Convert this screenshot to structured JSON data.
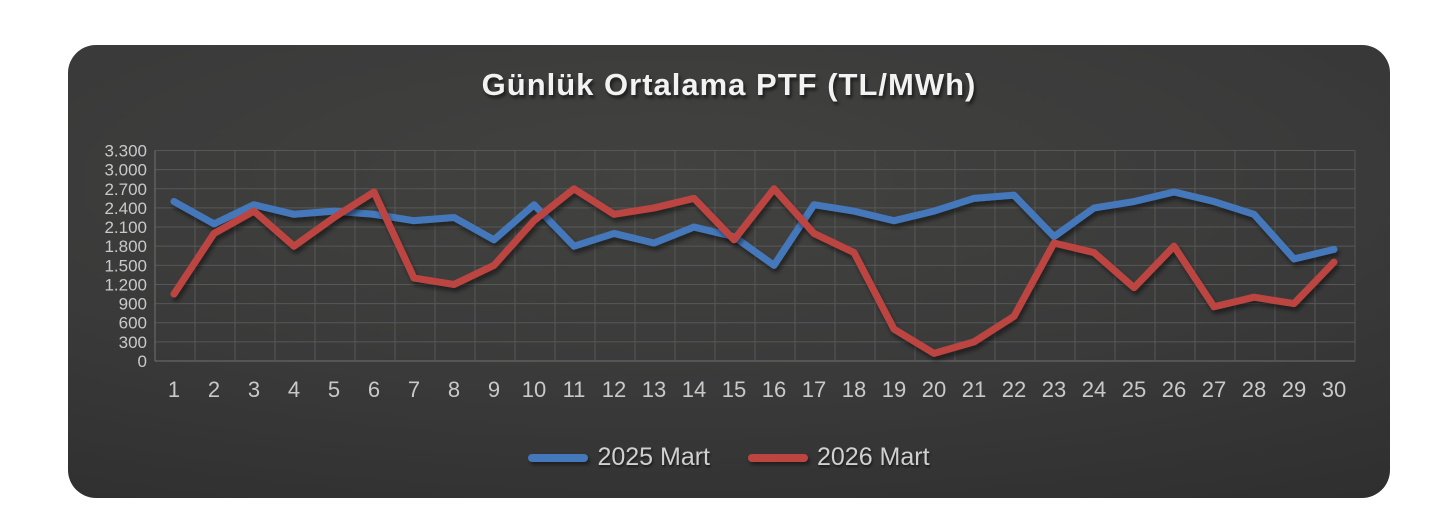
{
  "panel": {
    "background_inner": "#424240",
    "background_outer": "#232323"
  },
  "legend": {
    "item1_label": "2025 Mart",
    "item2_label": "2026 Mart"
  },
  "chart_data": {
    "type": "line",
    "title": "Günlük Ortalama PTF (TL/MWh)",
    "categories": [
      1,
      2,
      3,
      4,
      5,
      6,
      7,
      8,
      9,
      10,
      11,
      12,
      13,
      14,
      15,
      16,
      17,
      18,
      19,
      20,
      21,
      22,
      23,
      24,
      25,
      26,
      27,
      28,
      29,
      30
    ],
    "series": [
      {
        "name": "2025 Mart",
        "color": "#4478ba",
        "values": [
          2500,
          2150,
          2450,
          2300,
          2350,
          2300,
          2200,
          2250,
          1900,
          2450,
          1800,
          2000,
          1850,
          2100,
          1950,
          1500,
          2450,
          2350,
          2200,
          2350,
          2550,
          2600,
          1950,
          2400,
          2500,
          2650,
          2500,
          2300,
          1600,
          1750
        ]
      },
      {
        "name": "2026 Mart",
        "color": "#bc4542",
        "values": [
          1050,
          2000,
          2350,
          1800,
          2250,
          2650,
          1300,
          1200,
          1500,
          2200,
          2700,
          2300,
          2400,
          2550,
          1900,
          2700,
          2000,
          1700,
          500,
          120,
          300,
          700,
          1850,
          1700,
          1150,
          1800,
          850,
          1000,
          900,
          1550
        ]
      }
    ],
    "xlabel": "",
    "ylabel": "",
    "ylim": [
      0,
      3300
    ],
    "ytick_step": 300,
    "ytick_labels": [
      "0",
      "300",
      "600",
      "900",
      "1.200",
      "1.500",
      "1.800",
      "2.100",
      "2.400",
      "2.700",
      "3.000",
      "3.300"
    ],
    "grid": true,
    "legend_position": "bottom",
    "grid_color": "#575757",
    "axis_color": "#717171",
    "tick_label_color": "#c9c9c9",
    "title_color": "#f2f2f2"
  }
}
